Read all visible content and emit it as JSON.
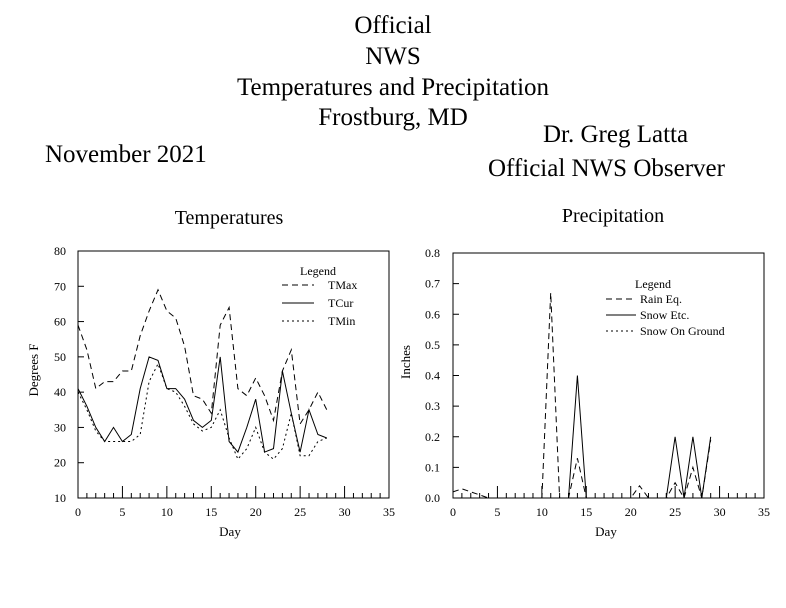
{
  "header": {
    "title_lines": [
      "Official",
      "NWS",
      "Temperatures and Precipitation",
      "Frostburg, MD"
    ],
    "period": "November 2021",
    "observer_name": "Dr. Greg Latta",
    "observer_role": "Official NWS Observer"
  },
  "chart_data": [
    {
      "type": "line",
      "title": "Temperatures",
      "xlabel": "Day",
      "ylabel": "Degrees F",
      "xlim": [
        0,
        35
      ],
      "ylim": [
        10,
        80
      ],
      "xticks": [
        0,
        5,
        10,
        15,
        20,
        25,
        30,
        35
      ],
      "yticks": [
        10,
        20,
        30,
        40,
        50,
        60,
        70,
        80
      ],
      "legend_title": "Legend",
      "legend_position": "top-right",
      "x": [
        0,
        1,
        2,
        3,
        4,
        5,
        6,
        7,
        8,
        9,
        10,
        11,
        12,
        13,
        14,
        15,
        16,
        17,
        18,
        19,
        20,
        21,
        22,
        23,
        24,
        25,
        26,
        27,
        28,
        29
      ],
      "series": [
        {
          "name": "TMax",
          "style": "dashed",
          "values": [
            59,
            52,
            41,
            43,
            43,
            46,
            46,
            56,
            63,
            69,
            63,
            61,
            53,
            39,
            38,
            34,
            59,
            64,
            41,
            39,
            44,
            39,
            32,
            46,
            52,
            31,
            35,
            40,
            35,
            null
          ]
        },
        {
          "name": "TCur",
          "style": "solid",
          "values": [
            41,
            36,
            30,
            26,
            30,
            26,
            28,
            41,
            50,
            49,
            41,
            41,
            38,
            32,
            30,
            32,
            50,
            26,
            23,
            30,
            38,
            23,
            24,
            46,
            34,
            23,
            35,
            28,
            27,
            null
          ]
        },
        {
          "name": "TMin",
          "style": "dotted",
          "values": [
            40,
            35,
            29,
            26,
            26,
            26,
            26,
            28,
            43,
            48,
            41,
            40,
            36,
            31,
            29,
            30,
            35,
            27,
            21,
            24,
            30,
            23,
            21,
            24,
            34,
            22,
            22,
            26,
            27,
            null
          ]
        }
      ]
    },
    {
      "type": "line",
      "title": "Precipitation",
      "xlabel": "Day",
      "ylabel": "Inches",
      "xlim": [
        0,
        35
      ],
      "ylim": [
        0,
        0.8
      ],
      "xticks": [
        0,
        5,
        10,
        15,
        20,
        25,
        30,
        35
      ],
      "yticks": [
        0.0,
        0.1,
        0.2,
        0.3,
        0.4,
        0.5,
        0.6,
        0.7,
        0.8
      ],
      "legend_title": "Legend",
      "legend_position": "top-center",
      "x": [
        0,
        1,
        2,
        3,
        4,
        5,
        6,
        7,
        8,
        9,
        10,
        11,
        12,
        13,
        14,
        15,
        16,
        17,
        18,
        19,
        20,
        21,
        22,
        23,
        24,
        25,
        26,
        27,
        28,
        29
      ],
      "series": [
        {
          "name": "Rain Eq.",
          "style": "dashed",
          "values": [
            0.02,
            0.03,
            0.02,
            0.01,
            0,
            0,
            0,
            0,
            0,
            0,
            0,
            0.67,
            0,
            0,
            0.13,
            0,
            0,
            0,
            0,
            0,
            0,
            0.04,
            0,
            0,
            0,
            0.05,
            0,
            0.1,
            0,
            0.19
          ]
        },
        {
          "name": "Snow Etc.",
          "style": "solid",
          "values": [
            0,
            0,
            0,
            0,
            0,
            0,
            0,
            0,
            0,
            0,
            0,
            0,
            0,
            0,
            0.4,
            0,
            0,
            0,
            0,
            0,
            0,
            0,
            0,
            0,
            0,
            0.2,
            0,
            0.2,
            0,
            0.2
          ]
        },
        {
          "name": "Snow On Ground",
          "style": "dotted",
          "values": [
            0,
            0,
            0,
            0,
            0,
            0,
            0,
            0,
            0,
            0,
            0,
            0,
            0,
            0,
            0,
            0,
            0,
            0,
            0,
            0,
            0,
            0,
            0,
            0,
            0,
            0,
            0,
            0,
            0,
            0
          ]
        }
      ]
    }
  ]
}
